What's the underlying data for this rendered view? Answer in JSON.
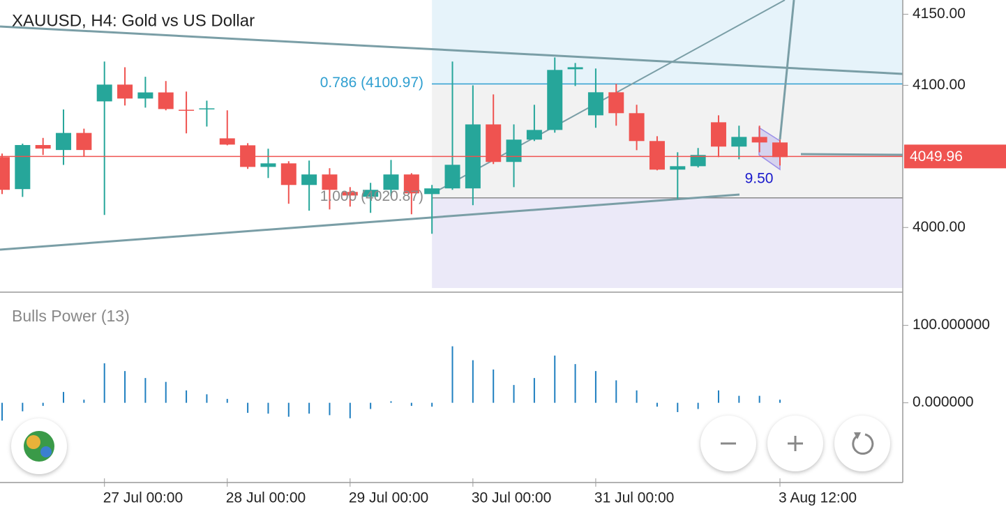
{
  "title": "XAUUSD, H4: Gold vs US Dollar",
  "annotation": "9.50",
  "chart_data": [
    {
      "type": "candlestick",
      "ylim": [
        3955,
        4160
      ],
      "yticks": [
        {
          "value": 4000,
          "label": "4000.00"
        },
        {
          "value": 4100,
          "label": "4100.00"
        },
        {
          "value": 4150,
          "label": "4150.00"
        }
      ],
      "categories": [
        null,
        null,
        null,
        null,
        null,
        "27 Jul 00:00",
        null,
        null,
        null,
        null,
        null,
        "28 Jul 00:00",
        null,
        null,
        null,
        null,
        null,
        "29 Jul 00:00",
        null,
        null,
        null,
        null,
        null,
        "30 Jul 00:00",
        null,
        null,
        null,
        null,
        null,
        "31 Jul 00:00",
        null,
        null,
        null,
        null,
        null,
        null,
        null,
        null,
        "3 Aug 12:00"
      ],
      "open": [
        4049.5,
        4027,
        4058,
        4054.5,
        4066.5,
        4088.7,
        4100.5,
        4090.7,
        4095,
        4082.8,
        4083.3,
        4062.7,
        4057.8,
        4042.6,
        4045.1,
        4029.9,
        4037.3,
        4025,
        4021.6,
        4026.5,
        4037.3,
        4023.5,
        4027.5,
        4027.5,
        4072.5,
        4046.1,
        4061.8,
        4068.6,
        4111.3,
        4078.9,
        4095.1,
        4080.4,
        4060.8,
        4040.7,
        4043.1,
        4074,
        4056.9,
        4063.7,
        4059.8
      ],
      "high": [
        4052,
        4059,
        4063,
        4083,
        4069.5,
        4116.7,
        4112.7,
        4106,
        4103,
        4095.6,
        4089.2,
        4082.4,
        4059.3,
        4055.4,
        4046.6,
        4047.1,
        4041.7,
        4028.4,
        4031.4,
        4047.5,
        4038.2,
        4029.9,
        4116.7,
        4100,
        4093.6,
        4072.5,
        4086.3,
        4119.6,
        4115.7,
        4111.8,
        4101,
        4086.3,
        4064.2,
        4052.9,
        4055.9,
        4078.9,
        4071.6,
        4071.6,
        4061.8
      ],
      "low": [
        4023.5,
        4021.5,
        4051,
        4044,
        4050,
        4008.8,
        4085.8,
        4084.3,
        4082.4,
        4066.2,
        4071,
        4057.8,
        4041.2,
        4034.8,
        4016.7,
        4011.8,
        4012.7,
        4014.7,
        4010.3,
        4022,
        4009.3,
        3995.6,
        4026.5,
        4015.7,
        4044.6,
        4028.4,
        4060.8,
        4066.7,
        4099.5,
        4070.1,
        4071.6,
        4054.4,
        4040.2,
        4020.1,
        4042.2,
        4049.5,
        4048,
        4052.9,
        4043.6
      ],
      "close": [
        4026.5,
        4058,
        4055.5,
        4066.5,
        4054.5,
        4100.5,
        4090.7,
        4095,
        4083.3,
        4082.4,
        4083.8,
        4058.3,
        4042.6,
        4045.1,
        4029.9,
        4037.3,
        4026.5,
        4022.5,
        4026.5,
        4037.3,
        4024,
        4027.5,
        4044.1,
        4072.5,
        4046.1,
        4061.8,
        4068.6,
        4110.8,
        4112.7,
        4095.1,
        4080.4,
        4060.8,
        4040.7,
        4043.1,
        4051,
        4056.9,
        4063.7,
        4059.8,
        4049.5
      ],
      "up_color": "#26a69a",
      "down_color": "#ef5350",
      "levels": [
        {
          "label": "0.786 (4100.97)",
          "value": 4100.97,
          "color": "#2f9fd0"
        },
        {
          "label": "1.000 (4020.87)",
          "value": 4020.87,
          "color": "#8a8a8a"
        }
      ],
      "last_price": 4049.96
    },
    {
      "type": "bar",
      "title": "Bulls Power (13)",
      "ylim": [
        -103,
        142
      ],
      "yticks": [
        {
          "value": 0,
          "label": "0.000000"
        },
        {
          "value": 100,
          "label": "100.000000"
        }
      ],
      "values": [
        -23,
        -11,
        -4,
        14,
        4,
        51,
        41,
        32,
        27,
        16,
        11,
        5,
        -13,
        -14,
        -18,
        -14,
        -16,
        -20,
        -8,
        2,
        -4,
        -5,
        73,
        55,
        43,
        23,
        32,
        61,
        50,
        41,
        29,
        16,
        -5,
        -12,
        -8,
        16,
        9,
        9,
        4
      ],
      "color": "#1f7fc0"
    }
  ]
}
